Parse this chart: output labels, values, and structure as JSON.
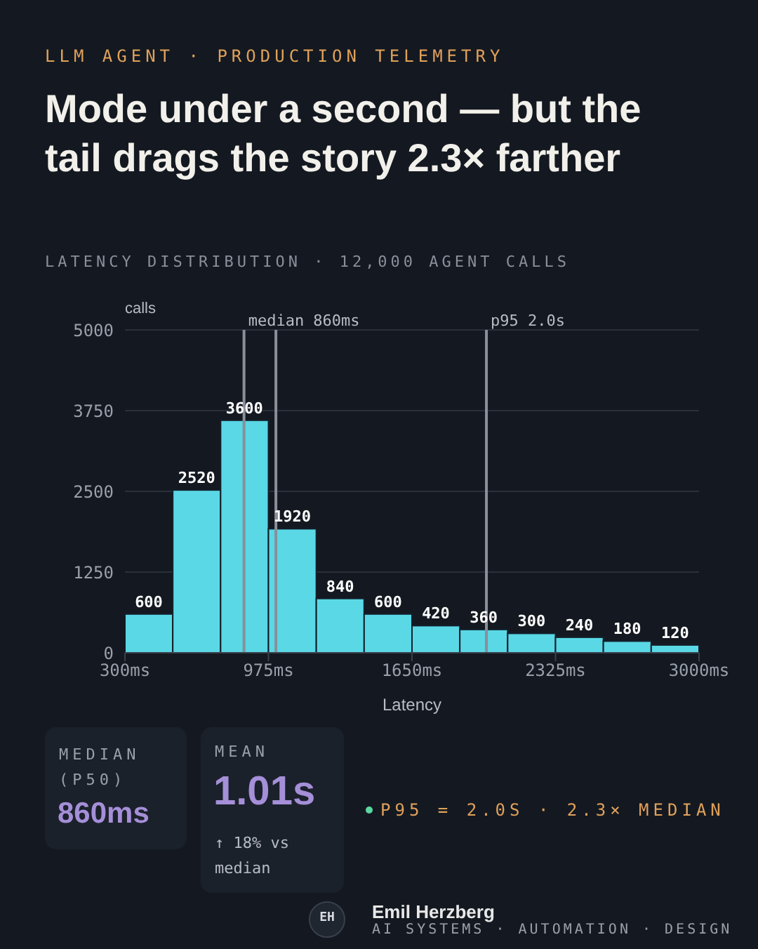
{
  "chart_data": {
    "type": "histogram",
    "title": "Mode under a second — but the tail drags the story 2.3× farther",
    "subtitle": "LATENCY DISTRIBUTION · 12,000 AGENT CALLS",
    "xlabel": "Latency",
    "ylabel": "calls",
    "bins": [
      300,
      525,
      750,
      975,
      1200,
      1425,
      1650,
      1875,
      2100,
      2325,
      2550,
      2775,
      3000
    ],
    "values": [
      600,
      2520,
      3600,
      1920,
      840,
      600,
      420,
      360,
      300,
      240,
      180,
      120
    ],
    "color": "#5ad8e6",
    "xlim": [
      300,
      3000
    ],
    "xticks": [
      {
        "value": 300,
        "label": "300ms"
      },
      {
        "value": 975,
        "label": "975ms"
      },
      {
        "value": 1650,
        "label": "1650ms"
      },
      {
        "value": 2325,
        "label": "2325ms"
      },
      {
        "value": 3000,
        "label": "3000ms"
      }
    ],
    "ylim": [
      0,
      5000
    ],
    "yticks": [
      0,
      1250,
      2500,
      3750,
      5000
    ],
    "grid": "y",
    "data_labels": true,
    "ref_lines": [
      {
        "axis": "x",
        "value": 860,
        "label": "median 860ms",
        "color": "#8a8f9a"
      },
      {
        "axis": "x",
        "value": 1010,
        "color": "#8a8f9a"
      },
      {
        "axis": "x",
        "value": 2000,
        "label": "p95 2.0s",
        "color": "#8a8f9a"
      }
    ],
    "annotations": [
      "LLM AGENT · PRODUCTION TELEMETRY",
      "MEDIAN (P50)",
      "860ms",
      "MEAN",
      "1.01s",
      "↑ 18% vs median",
      "P95 = 2.0S · 2.3× MEDIAN",
      "EH",
      "Emil Herzberg",
      "AI SYSTEMS · AUTOMATION · DESIGN"
    ]
  }
}
